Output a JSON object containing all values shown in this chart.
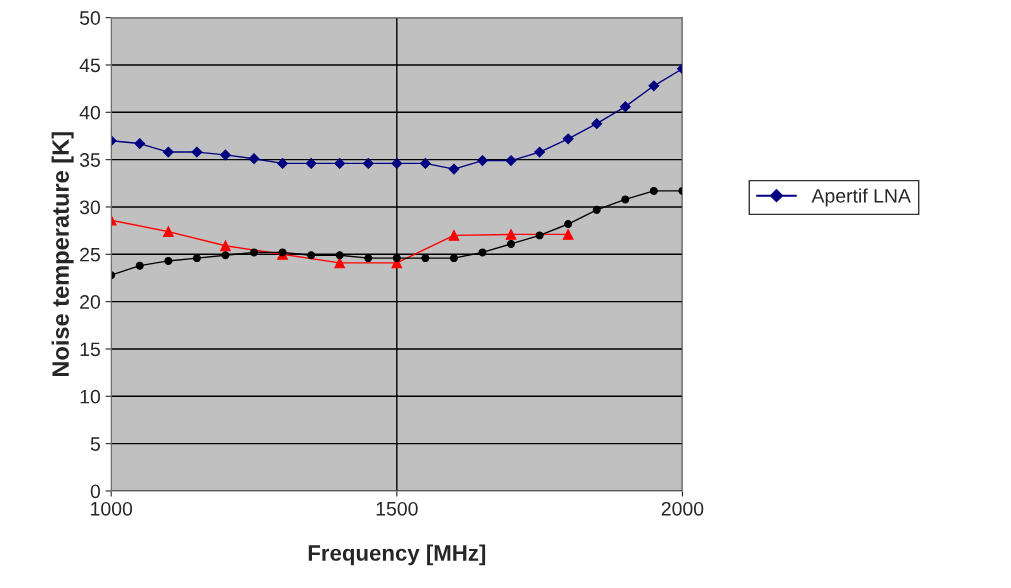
{
  "chart_data": {
    "type": "line",
    "xlabel": "Frequency [MHz]",
    "ylabel": "Noise temperature [K]",
    "xlim": [
      1000,
      2000
    ],
    "xticks": [
      1000,
      1500,
      2000
    ],
    "ylim": [
      0,
      50
    ],
    "yticks": [
      0,
      5,
      10,
      15,
      20,
      25,
      30,
      35,
      40,
      45,
      50
    ],
    "grid": true,
    "legend": "right",
    "series": [
      {
        "name": "Apertif LNA",
        "color": "#000080",
        "marker": "diamond",
        "x": [
          1000,
          1050,
          1100,
          1150,
          1200,
          1250,
          1300,
          1350,
          1400,
          1450,
          1500,
          1550,
          1600,
          1650,
          1700,
          1750,
          1800,
          1850,
          1900,
          1950,
          2000
        ],
        "values": [
          37.0,
          36.7,
          35.8,
          35.8,
          35.5,
          35.1,
          34.6,
          34.6,
          34.6,
          34.6,
          34.6,
          34.6,
          34.0,
          34.9,
          34.9,
          35.8,
          37.2,
          38.8,
          40.6,
          42.8,
          44.6
        ]
      },
      {
        "color": "#ff0000",
        "marker": "triangle",
        "x": [
          1000,
          1100,
          1200,
          1300,
          1400,
          1500,
          1600,
          1700,
          1800
        ],
        "values": [
          28.6,
          27.4,
          25.9,
          25.0,
          24.1,
          24.1,
          27.0,
          27.1,
          27.1
        ]
      },
      {
        "color": "#000000",
        "marker": "circle",
        "x": [
          1000,
          1050,
          1100,
          1150,
          1200,
          1250,
          1300,
          1350,
          1400,
          1450,
          1500,
          1550,
          1600,
          1650,
          1700,
          1750,
          1800,
          1850,
          1900,
          1950,
          2000
        ],
        "values": [
          22.8,
          23.8,
          24.3,
          24.6,
          24.9,
          25.2,
          25.2,
          24.9,
          24.9,
          24.6,
          24.6,
          24.6,
          24.6,
          25.2,
          26.1,
          27.0,
          28.2,
          29.7,
          30.8,
          31.7,
          31.7
        ]
      }
    ]
  }
}
